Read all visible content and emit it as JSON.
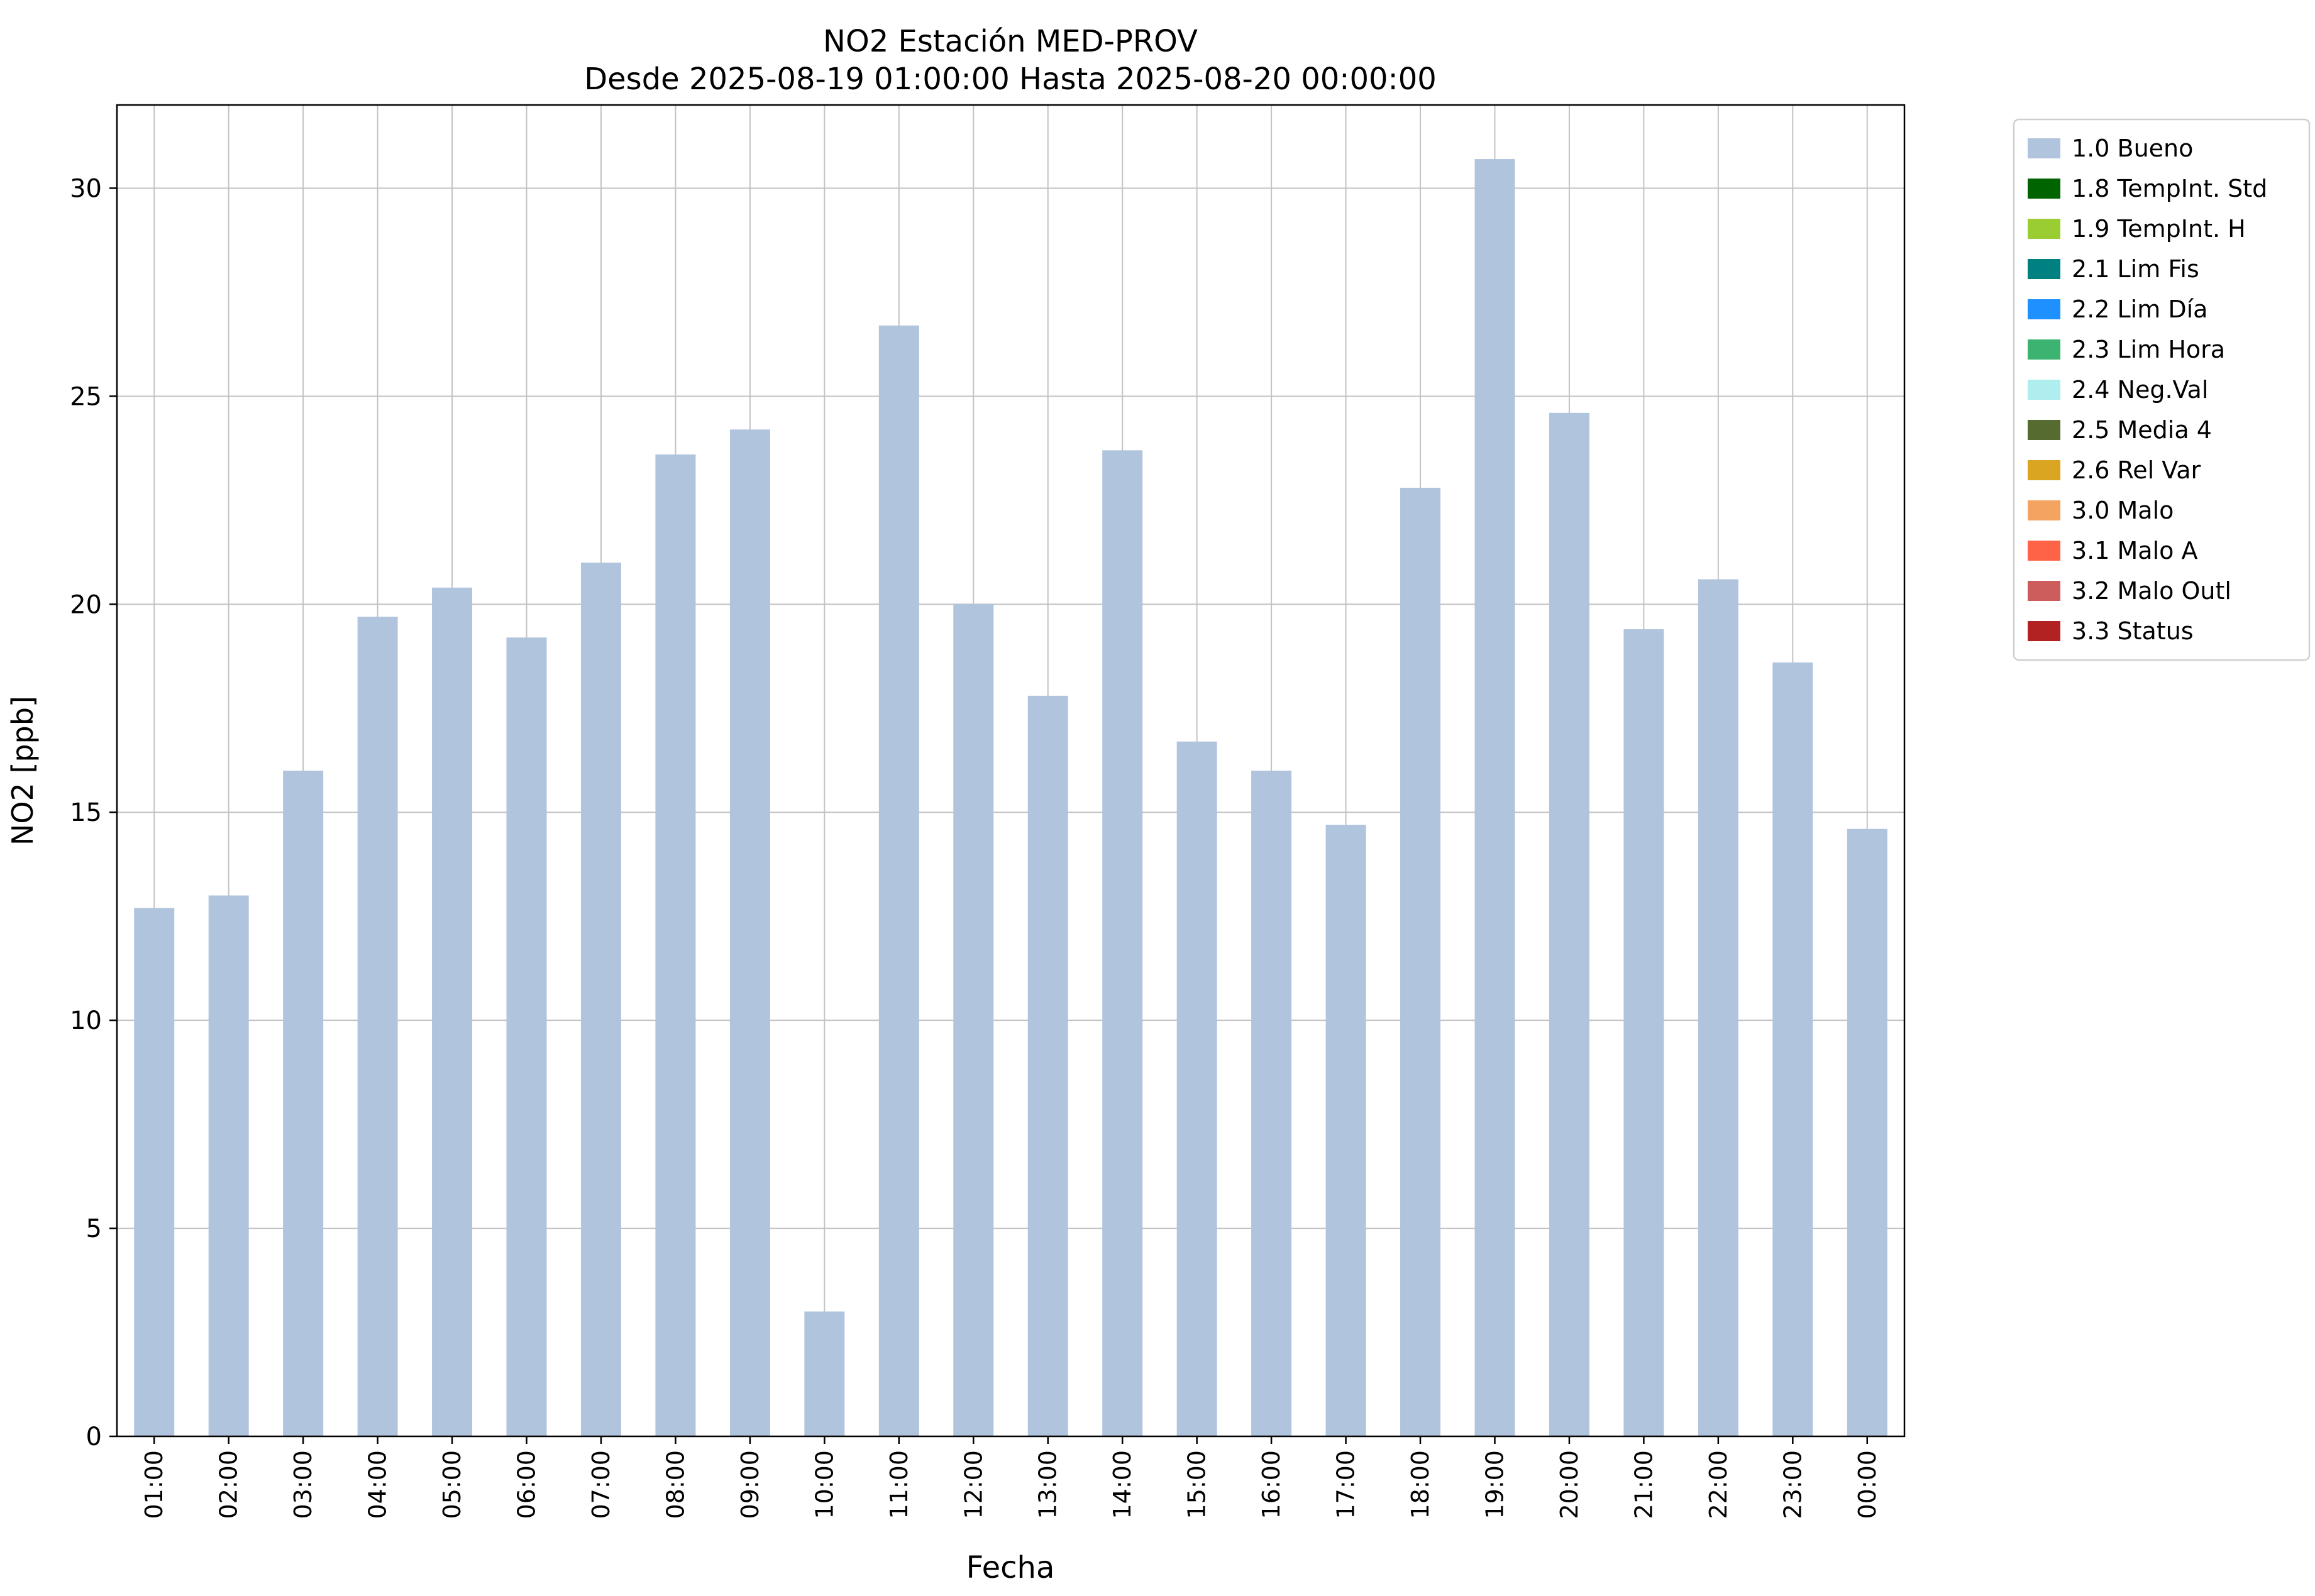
{
  "chart_data": {
    "type": "bar",
    "title_lines": [
      "NO2 Estación MED-PROV",
      "Desde 2025-08-19 01:00:00 Hasta 2025-08-20 00:00:00"
    ],
    "xlabel": "Fecha",
    "ylabel": "NO2 [ppb]",
    "categories": [
      "01:00",
      "02:00",
      "03:00",
      "04:00",
      "05:00",
      "06:00",
      "07:00",
      "08:00",
      "09:00",
      "10:00",
      "11:00",
      "12:00",
      "13:00",
      "14:00",
      "15:00",
      "16:00",
      "17:00",
      "18:00",
      "19:00",
      "20:00",
      "21:00",
      "22:00",
      "23:00",
      "00:00"
    ],
    "values": [
      12.7,
      13.0,
      16.0,
      19.7,
      20.4,
      19.2,
      21.0,
      23.6,
      24.2,
      3.0,
      26.7,
      20.0,
      17.8,
      23.7,
      16.7,
      16.0,
      14.7,
      22.8,
      30.7,
      24.6,
      19.4,
      20.6,
      18.6,
      14.6
    ],
    "ylim": [
      0,
      32
    ],
    "yticks": [
      0,
      5,
      10,
      15,
      20,
      25,
      30
    ],
    "grid": true,
    "grid_color": "#c3c3c3",
    "bar_color": "#b0c4de",
    "legend_position": "outside upper right",
    "legend": [
      {
        "label": "1.0 Bueno",
        "color": "#b0c4de"
      },
      {
        "label": "1.8 TempInt. Std",
        "color": "#006400"
      },
      {
        "label": "1.9 TempInt. H",
        "color": "#9acd32"
      },
      {
        "label": "2.1 Lim Fis",
        "color": "#008080"
      },
      {
        "label": "2.2 Lim Día",
        "color": "#1e90ff"
      },
      {
        "label": "2.3 Lim Hora",
        "color": "#3cb371"
      },
      {
        "label": "2.4 Neg.Val",
        "color": "#afeeee"
      },
      {
        "label": "2.5 Media 4",
        "color": "#556b2f"
      },
      {
        "label": "2.6 Rel Var",
        "color": "#daa520"
      },
      {
        "label": "3.0 Malo",
        "color": "#f4a460"
      },
      {
        "label": "3.1 Malo A",
        "color": "#ff6347"
      },
      {
        "label": "3.2 Malo Outl",
        "color": "#cd5c5c"
      },
      {
        "label": "3.3 Status",
        "color": "#b22222"
      }
    ]
  }
}
